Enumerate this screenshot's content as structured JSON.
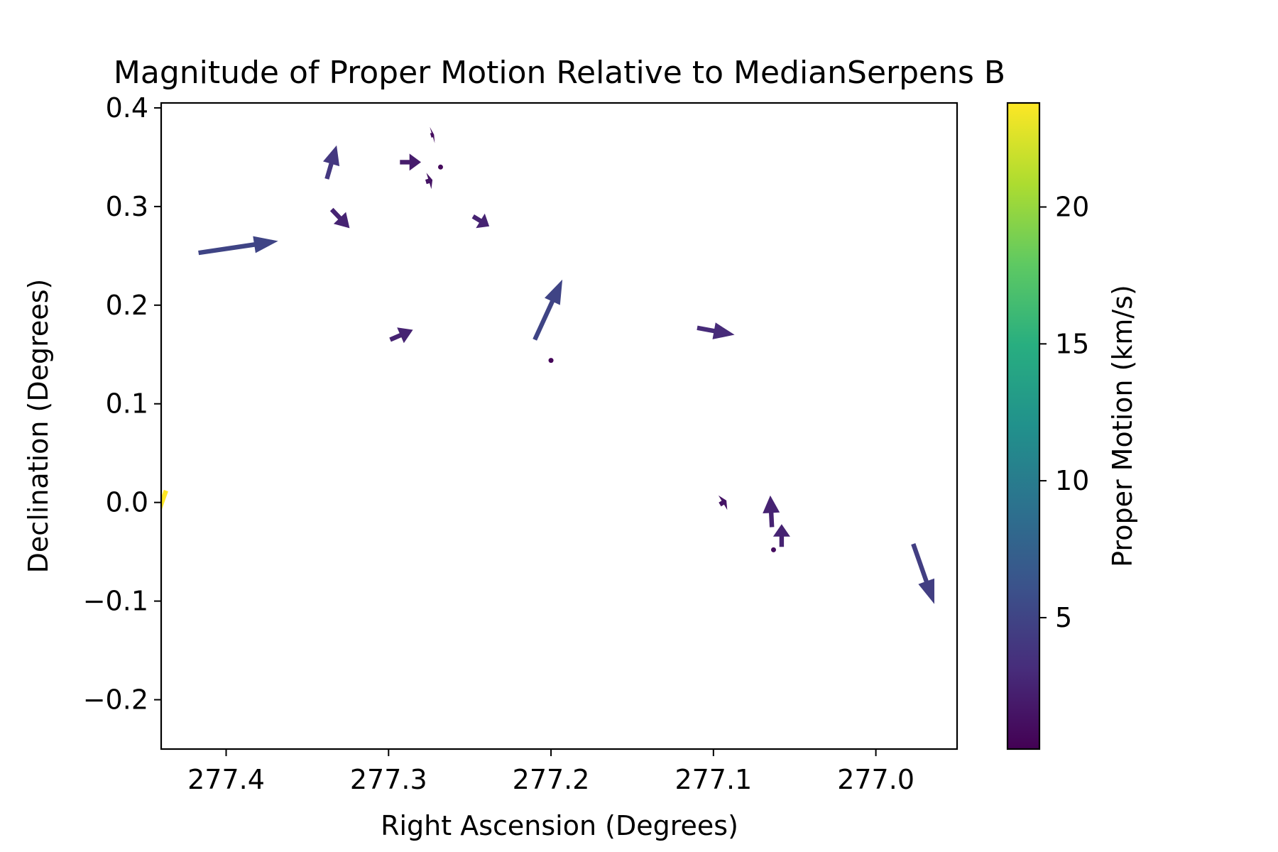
{
  "chart_data": {
    "type": "quiver",
    "title": "Magnitude of Proper Motion Relative to MedianSerpens B",
    "xlabel": "Right Ascension (Degrees)",
    "ylabel": "Declination (Degrees)",
    "xlim": [
      277.44,
      276.95
    ],
    "ylim": [
      -0.25,
      0.405
    ],
    "x_inverted": true,
    "grid": false,
    "xticks": [
      277.4,
      277.3,
      277.2,
      277.1,
      277.0
    ],
    "xtick_labels": [
      "277.4",
      "277.3",
      "277.2",
      "277.1",
      "277.0"
    ],
    "yticks": [
      0.4,
      0.3,
      0.2,
      0.1,
      0.0,
      -0.1,
      -0.2
    ],
    "ytick_labels": [
      "0.4",
      "0.3",
      "0.2",
      "0.1",
      "0.0",
      "−0.1",
      "−0.2"
    ],
    "colorbar": {
      "label": "Proper Motion (km/s)",
      "colormap": "viridis",
      "range": [
        0.2,
        23.8
      ],
      "ticks": [
        5,
        10,
        15,
        20
      ],
      "tick_labels": [
        "5",
        "10",
        "15",
        "20"
      ]
    },
    "vectors": [
      {
        "ra": 277.417,
        "dec": 0.253,
        "d_ra": -0.049,
        "d_dec": 0.012,
        "magnitude": 5.0
      },
      {
        "ra": 277.338,
        "dec": 0.328,
        "d_ra": -0.006,
        "d_dec": 0.034,
        "magnitude": 4.0
      },
      {
        "ra": 277.335,
        "dec": 0.297,
        "d_ra": -0.011,
        "d_dec": -0.019,
        "magnitude": 2.5
      },
      {
        "ra": 277.293,
        "dec": 0.345,
        "d_ra": -0.013,
        "d_dec": 0.0,
        "magnitude": 2.0
      },
      {
        "ra": 277.277,
        "dec": 0.325,
        "d_ra": -0.004,
        "d_dec": 0.002,
        "magnitude": 1.5
      },
      {
        "ra": 277.274,
        "dec": 0.372,
        "d_ra": -0.002,
        "d_dec": 0.001,
        "magnitude": 1.0
      },
      {
        "ra": 277.268,
        "dec": 0.34,
        "d_ra": 0.0,
        "d_dec": 0.0,
        "magnitude": 0.8
      },
      {
        "ra": 277.248,
        "dec": 0.29,
        "d_ra": -0.01,
        "d_dec": -0.01,
        "magnitude": 2.5
      },
      {
        "ra": 277.299,
        "dec": 0.165,
        "d_ra": -0.014,
        "d_dec": 0.01,
        "magnitude": 2.5
      },
      {
        "ra": 277.21,
        "dec": 0.165,
        "d_ra": -0.017,
        "d_dec": 0.061,
        "magnitude": 5.0
      },
      {
        "ra": 277.2,
        "dec": 0.144,
        "d_ra": 0.0,
        "d_dec": 0.0,
        "magnitude": 0.5
      },
      {
        "ra": 277.11,
        "dec": 0.177,
        "d_ra": -0.023,
        "d_dec": -0.007,
        "magnitude": 3.0
      },
      {
        "ra": 277.096,
        "dec": -0.002,
        "d_ra": -0.004,
        "d_dec": 0.004,
        "magnitude": 1.5
      },
      {
        "ra": 277.064,
        "dec": -0.025,
        "d_ra": 0.001,
        "d_dec": 0.032,
        "magnitude": 2.5
      },
      {
        "ra": 277.063,
        "dec": -0.048,
        "d_ra": 0.0,
        "d_dec": 0.002,
        "magnitude": 1.0
      },
      {
        "ra": 277.058,
        "dec": -0.045,
        "d_ra": 0.0,
        "d_dec": 0.023,
        "magnitude": 2.5
      },
      {
        "ra": 276.977,
        "dec": -0.042,
        "d_ra": -0.013,
        "d_dec": -0.061,
        "magnitude": 4.5
      },
      {
        "ra": 277.437,
        "dec": 0.012,
        "d_ra": 0.05,
        "d_dec": -0.234,
        "magnitude": 23.8
      }
    ]
  }
}
